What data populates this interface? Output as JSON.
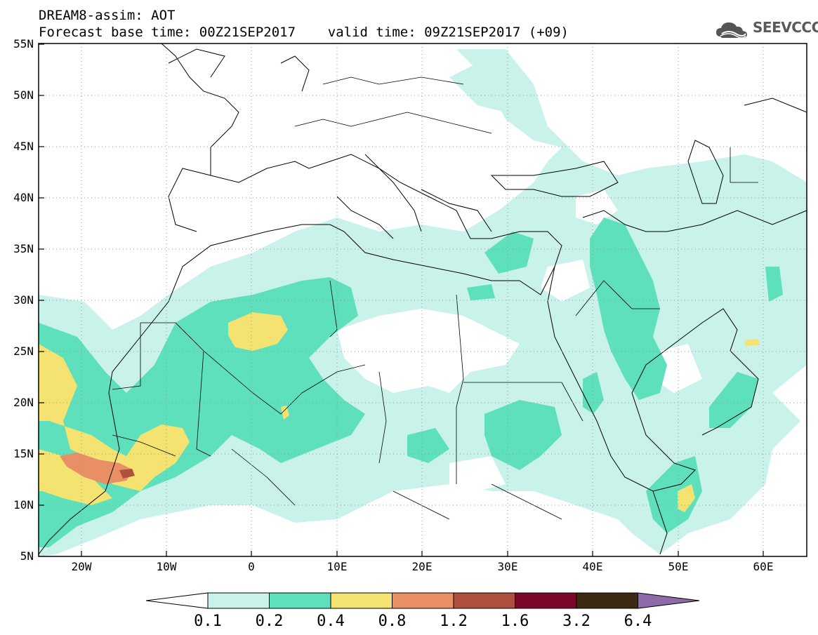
{
  "title": {
    "line1": "DREAM8-assim: AOT",
    "line2": "Forecast base time: 00Z21SEP2017    valid time: 09Z21SEP2017 (+09)"
  },
  "logo": {
    "text": "SEEVCCC",
    "icon": "cloud-logo-icon"
  },
  "map": {
    "projection": "lat-lon",
    "lon_range": [
      -25,
      65
    ],
    "lat_range": [
      5,
      55
    ],
    "lat_labels": [
      "55N",
      "50N",
      "45N",
      "40N",
      "35N",
      "30N",
      "25N",
      "20N",
      "15N",
      "10N",
      "5N"
    ],
    "lon_labels": [
      "20W",
      "10W",
      "0",
      "10E",
      "20E",
      "30E",
      "40E",
      "50E",
      "60E"
    ],
    "grid": "dotted"
  },
  "colorbar": {
    "labels": [
      "0.1",
      "0.2",
      "0.4",
      "0.8",
      "1.2",
      "1.6",
      "3.2",
      "6.4"
    ],
    "colors": [
      "#c9f2ea",
      "#5fe0bc",
      "#f4e271",
      "#e88f66",
      "#b0503e",
      "#7c0829",
      "#3c2a14",
      "#8e6aa9"
    ],
    "below_color": "#ffffff"
  }
}
